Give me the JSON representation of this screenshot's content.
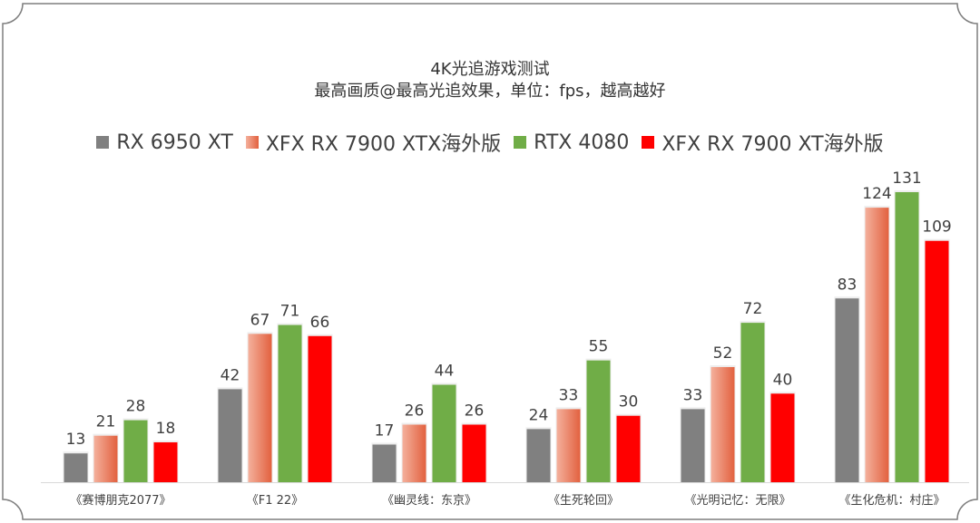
{
  "chart_data": {
    "type": "bar",
    "title": "4K光追游戏测试",
    "subtitle": "最高画质@最高光追效果，单位：fps，越高越好",
    "categories": [
      "《赛博朋克2077》",
      "《F1 22》",
      "《幽灵线：东京》",
      "《生死轮回》",
      "《光明记忆：无限》",
      "《生化危机：村庄》"
    ],
    "series": [
      {
        "name": "RX 6950 XT",
        "color": "#808080",
        "values": [
          13,
          42,
          17,
          24,
          33,
          83
        ]
      },
      {
        "name": "XFX RX 7900 XTX海外版",
        "color": "#ea7a5a",
        "gradient": [
          "#f4b09c",
          "#e2613f"
        ],
        "values": [
          21,
          67,
          26,
          33,
          52,
          124
        ]
      },
      {
        "name": "RTX 4080",
        "color": "#70ad47",
        "values": [
          28,
          71,
          44,
          55,
          72,
          131
        ]
      },
      {
        "name": "XFX RX 7900 XT海外版",
        "color": "#ff0000",
        "values": [
          18,
          66,
          26,
          30,
          40,
          109
        ]
      }
    ],
    "ylim": [
      0,
      131
    ],
    "grid": false,
    "data_labels": true,
    "legend_position": "top"
  }
}
